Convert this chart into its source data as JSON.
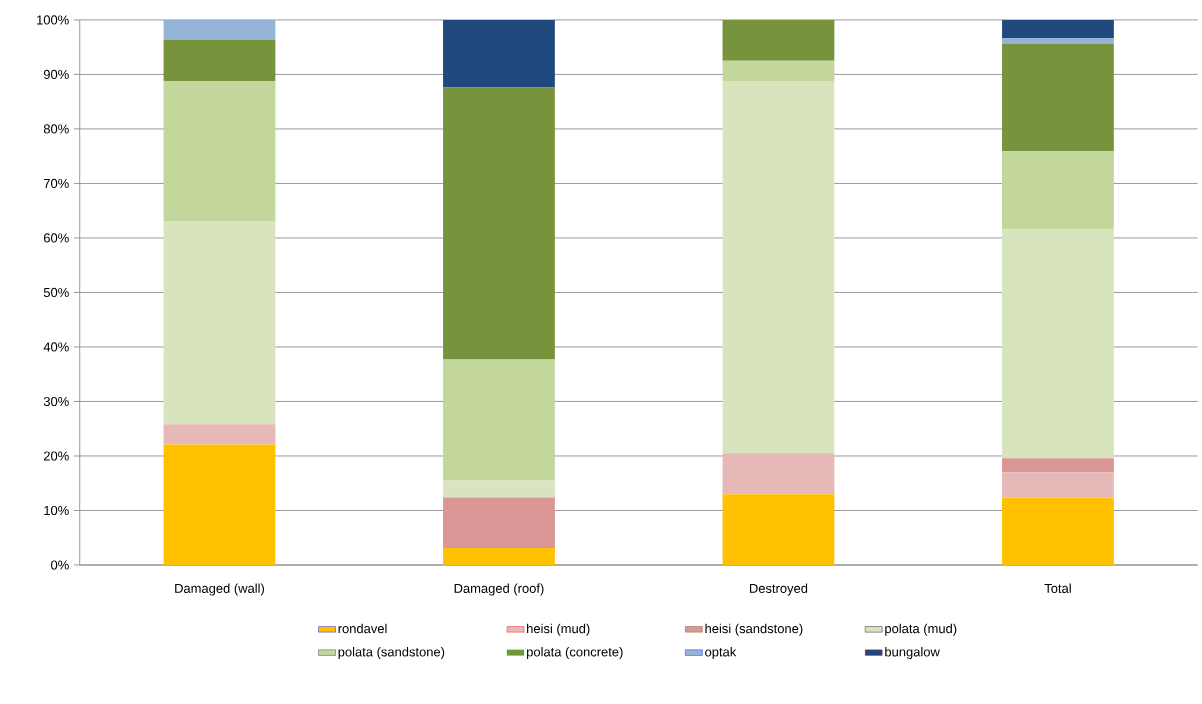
{
  "chart_data": {
    "type": "bar",
    "stacked": true,
    "categories": [
      "Damaged (wall)",
      "Damaged (roof)",
      "Destroyed",
      "Total"
    ],
    "series": [
      {
        "name": "rondavel",
        "color": "#ffc000",
        "values": [
          22.1,
          3.1,
          13.0,
          12.4
        ]
      },
      {
        "name": "heisi (mud)",
        "color": "#e6b9b8",
        "values": [
          3.7,
          0,
          7.5,
          4.6
        ]
      },
      {
        "name": "heisi (sandstone)",
        "color": "#d99694",
        "values": [
          0,
          9.3,
          0,
          2.6
        ]
      },
      {
        "name": "polata (mud)",
        "color": "#d7e4bd",
        "values": [
          37.3,
          3.1,
          68.3,
          42.0
        ]
      },
      {
        "name": "polata (sandstone)",
        "color": "#c3d69b",
        "values": [
          25.7,
          22.2,
          3.7,
          14.3
        ]
      },
      {
        "name": "polata (concrete)",
        "color": "#77933c",
        "values": [
          7.5,
          49.9,
          7.5,
          19.7
        ]
      },
      {
        "name": "optak",
        "color": "#95b3d7",
        "values": [
          3.7,
          0,
          0,
          1.1
        ]
      },
      {
        "name": "bungalow",
        "color": "#1f497d",
        "values": [
          0,
          12.4,
          0,
          3.3
        ]
      }
    ],
    "ylim": [
      0,
      100
    ],
    "yticks": [
      {
        "value": 0,
        "label": "0%"
      },
      {
        "value": 10,
        "label": "10%"
      },
      {
        "value": 20,
        "label": "20%"
      },
      {
        "value": 30,
        "label": "30%"
      },
      {
        "value": 40,
        "label": "40%"
      },
      {
        "value": 50,
        "label": "50%"
      },
      {
        "value": 60,
        "label": "60%"
      },
      {
        "value": 70,
        "label": "70%"
      },
      {
        "value": 80,
        "label": "80%"
      },
      {
        "value": 90,
        "label": "90%"
      },
      {
        "value": 100,
        "label": "100%"
      }
    ],
    "grid": "y",
    "legend": "bottom"
  }
}
